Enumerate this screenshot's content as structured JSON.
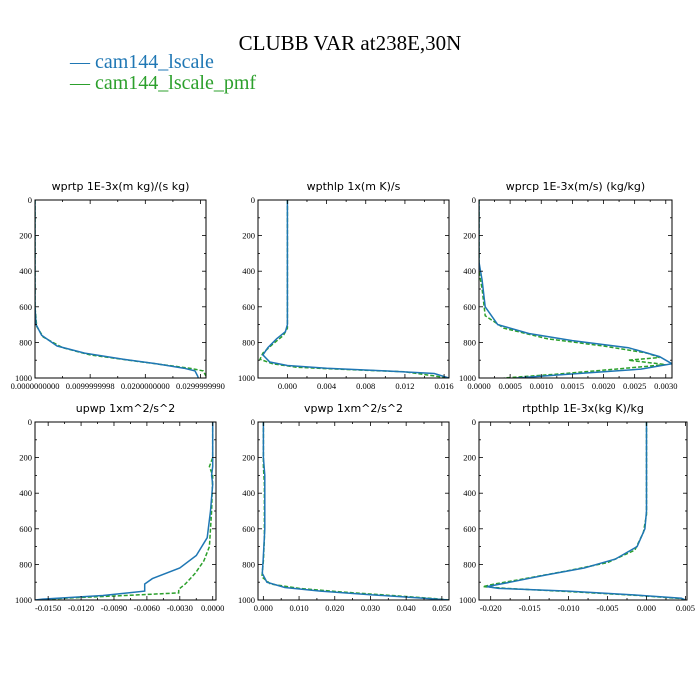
{
  "title": "CLUBB VAR at238E,30N",
  "legend": [
    {
      "label": "cam144_lscale",
      "color": "#1f77b4",
      "dash": "solid"
    },
    {
      "label": "cam144_lscale_pmf",
      "color": "#2ca02c",
      "dash": "dashed"
    }
  ],
  "chart_data": [
    {
      "type": "line",
      "title": "wprtp  1E-3x(m kg)/(s kg)",
      "ylim": [
        1000,
        0
      ],
      "yticks": [
        "0",
        "200",
        "400",
        "600",
        "800",
        "1000"
      ],
      "xlim": [
        0.0,
        0.031
      ],
      "xticks": [
        {
          "v": 0.0,
          "label": "0.0000000000"
        },
        {
          "v": 0.01,
          "label": "0.0099999998"
        },
        {
          "v": 0.02,
          "label": "0.0200000000"
        },
        {
          "v": 0.03,
          "label": "0.0299999990"
        }
      ],
      "series": [
        {
          "name": "cam144_lscale",
          "points": [
            [
              0.0,
              0
            ],
            [
              0.0,
              600
            ],
            [
              0.0002,
              700
            ],
            [
              0.0012,
              760
            ],
            [
              0.004,
              820
            ],
            [
              0.009,
              860
            ],
            [
              0.016,
              895
            ],
            [
              0.022,
              920
            ],
            [
              0.027,
              945
            ],
            [
              0.029,
              960
            ],
            [
              0.0295,
              990
            ],
            [
              0.0296,
              1000
            ]
          ]
        },
        {
          "name": "cam144_lscale_pmf",
          "points": [
            [
              0.0,
              0
            ],
            [
              0.0,
              600
            ],
            [
              0.0003,
              710
            ],
            [
              0.0015,
              770
            ],
            [
              0.005,
              830
            ],
            [
              0.01,
              870
            ],
            [
              0.017,
              900
            ],
            [
              0.023,
              925
            ],
            [
              0.028,
              945
            ],
            [
              0.0305,
              960
            ],
            [
              0.031,
              990
            ],
            [
              0.031,
              1000
            ]
          ]
        }
      ]
    },
    {
      "type": "line",
      "title": "wpthlp  1x(m K)/s",
      "ylim": [
        1000,
        0
      ],
      "yticks": [
        "0",
        "200",
        "400",
        "600",
        "800",
        "1000"
      ],
      "xlim": [
        -0.003,
        0.0165
      ],
      "xticks": [
        {
          "v": 0.0,
          "label": "0.000"
        },
        {
          "v": 0.004,
          "label": "0.004"
        },
        {
          "v": 0.008,
          "label": "0.008"
        },
        {
          "v": 0.012,
          "label": "0.012"
        },
        {
          "v": 0.016,
          "label": "0.016"
        }
      ],
      "series": [
        {
          "name": "cam144_lscale",
          "points": [
            [
              0.0,
              0
            ],
            [
              0.0,
              700
            ],
            [
              -0.0002,
              740
            ],
            [
              -0.0011,
              780
            ],
            [
              -0.002,
              830
            ],
            [
              -0.0025,
              870
            ],
            [
              -0.0018,
              910
            ],
            [
              0.0,
              930
            ],
            [
              0.004,
              945
            ],
            [
              0.01,
              960
            ],
            [
              0.015,
              975
            ],
            [
              0.0165,
              1000
            ]
          ]
        },
        {
          "name": "cam144_lscale_pmf",
          "points": [
            [
              0.0,
              0
            ],
            [
              0.0,
              720
            ],
            [
              -0.0004,
              760
            ],
            [
              -0.0015,
              810
            ],
            [
              -0.0025,
              860
            ],
            [
              -0.0028,
              895
            ],
            [
              -0.0015,
              920
            ],
            [
              0.001,
              940
            ],
            [
              0.006,
              952
            ],
            [
              0.012,
              965
            ],
            [
              0.0165,
              1000
            ]
          ]
        }
      ]
    },
    {
      "type": "line",
      "title": "wprcp  1E-3x(m/s) (kg/kg)",
      "ylim": [
        1000,
        0
      ],
      "yticks": [
        "0",
        "200",
        "400",
        "600",
        "800",
        "1000"
      ],
      "xlim": [
        0.0,
        0.0031
      ],
      "xticks": [
        {
          "v": 0.0,
          "label": "0.0000"
        },
        {
          "v": 0.0005,
          "label": "0.0005"
        },
        {
          "v": 0.001,
          "label": "0.0010"
        },
        {
          "v": 0.0015,
          "label": "0.0015"
        },
        {
          "v": 0.002,
          "label": "0.0020"
        },
        {
          "v": 0.0025,
          "label": "0.0025"
        },
        {
          "v": 0.003,
          "label": "0.0030"
        }
      ],
      "series": [
        {
          "name": "cam144_lscale",
          "points": [
            [
              0.0,
              0
            ],
            [
              0.0,
              350
            ],
            [
              5e-05,
              450
            ],
            [
              0.0001,
              600
            ],
            [
              0.0003,
              700
            ],
            [
              0.0008,
              750
            ],
            [
              0.0015,
              790
            ],
            [
              0.0024,
              830
            ],
            [
              0.0029,
              880
            ],
            [
              0.0031,
              920
            ],
            [
              0.0026,
              950
            ],
            [
              0.0014,
              980
            ],
            [
              0.0006,
              1000
            ]
          ]
        },
        {
          "name": "cam144_lscale_pmf",
          "points": [
            [
              0.0,
              0
            ],
            [
              0.0,
              400
            ],
            [
              5e-05,
              500
            ],
            [
              0.0001,
              650
            ],
            [
              0.0004,
              720
            ],
            [
              0.0011,
              780
            ],
            [
              0.002,
              820
            ],
            [
              0.0027,
              860
            ],
            [
              0.0029,
              885
            ],
            [
              0.0024,
              900
            ],
            [
              0.003,
              925
            ],
            [
              0.0022,
              950
            ],
            [
              0.0012,
              980
            ],
            [
              0.0004,
              1000
            ]
          ]
        }
      ]
    },
    {
      "type": "line",
      "title": "upwp  1xm^2/s^2",
      "ylim": [
        1000,
        0
      ],
      "yticks": [
        "0",
        "200",
        "400",
        "600",
        "800",
        "1000"
      ],
      "xlim": [
        -0.0162,
        0.0003
      ],
      "xticks": [
        {
          "v": -0.015,
          "label": "-0.0150"
        },
        {
          "v": -0.012,
          "label": "-0.0120"
        },
        {
          "v": -0.009,
          "label": "-0.0090"
        },
        {
          "v": -0.006,
          "label": "-0.0060"
        },
        {
          "v": -0.003,
          "label": "-0.0030"
        },
        {
          "v": 0.0,
          "label": "0.0000"
        }
      ],
      "series": [
        {
          "name": "cam144_lscale",
          "points": [
            [
              0.0,
              0
            ],
            [
              0.0,
              250
            ],
            [
              -0.0001,
              300
            ],
            [
              0.0,
              350
            ],
            [
              -0.0002,
              500
            ],
            [
              -0.0005,
              650
            ],
            [
              -0.0015,
              750
            ],
            [
              -0.003,
              820
            ],
            [
              -0.0055,
              880
            ],
            [
              -0.0062,
              910
            ],
            [
              -0.0062,
              950
            ],
            [
              -0.01,
              975
            ],
            [
              -0.0155,
              995
            ],
            [
              -0.0162,
              1000
            ]
          ]
        },
        {
          "name": "cam144_lscale_pmf",
          "points": [
            [
              0.0,
              0
            ],
            [
              0.0,
              200
            ],
            [
              -0.0003,
              250
            ],
            [
              0.0,
              300
            ],
            [
              -0.0001,
              500
            ],
            [
              -0.0003,
              700
            ],
            [
              -0.0008,
              780
            ],
            [
              -0.0016,
              850
            ],
            [
              -0.0025,
              910
            ],
            [
              -0.0031,
              940
            ],
            [
              -0.0031,
              960
            ],
            [
              -0.008,
              975
            ],
            [
              -0.0135,
              990
            ],
            [
              -0.016,
              1000
            ]
          ]
        }
      ]
    },
    {
      "type": "line",
      "title": "vpwp  1xm^2/s^2",
      "ylim": [
        1000,
        0
      ],
      "yticks": [
        "0",
        "200",
        "400",
        "600",
        "800",
        "1000"
      ],
      "xlim": [
        -0.0015,
        0.052
      ],
      "xticks": [
        {
          "v": 0.0,
          "label": "0.000"
        },
        {
          "v": 0.01,
          "label": "0.010"
        },
        {
          "v": 0.02,
          "label": "0.020"
        },
        {
          "v": 0.03,
          "label": "0.030"
        },
        {
          "v": 0.04,
          "label": "0.040"
        },
        {
          "v": 0.05,
          "label": "0.050"
        }
      ],
      "series": [
        {
          "name": "cam144_lscale",
          "points": [
            [
              0.0,
              0
            ],
            [
              0.0,
              200
            ],
            [
              0.0004,
              300
            ],
            [
              0.0004,
              600
            ],
            [
              0.0,
              750
            ],
            [
              -0.0003,
              850
            ],
            [
              0.001,
              900
            ],
            [
              0.006,
              930
            ],
            [
              0.016,
              950
            ],
            [
              0.03,
              970
            ],
            [
              0.045,
              990
            ],
            [
              0.052,
              1000
            ]
          ]
        },
        {
          "name": "cam144_lscale_pmf",
          "points": [
            [
              0.0,
              0
            ],
            [
              0.0,
              250
            ],
            [
              0.0003,
              350
            ],
            [
              0.0003,
              650
            ],
            [
              0.0,
              780
            ],
            [
              -0.0004,
              870
            ],
            [
              0.002,
              910
            ],
            [
              0.01,
              935
            ],
            [
              0.022,
              955
            ],
            [
              0.036,
              975
            ],
            [
              0.048,
              992
            ],
            [
              0.052,
              1000
            ]
          ]
        }
      ]
    },
    {
      "type": "line",
      "title": "rtpthlp  1E-3x(kg K)/kg",
      "ylim": [
        1000,
        0
      ],
      "yticks": [
        "0",
        "200",
        "400",
        "600",
        "800",
        "1000"
      ],
      "xlim": [
        -0.0215,
        0.0052
      ],
      "xticks": [
        {
          "v": -0.02,
          "label": "-0.020"
        },
        {
          "v": -0.015,
          "label": "-0.015"
        },
        {
          "v": -0.01,
          "label": "-0.010"
        },
        {
          "v": -0.005,
          "label": "-0.005"
        },
        {
          "v": 0.0,
          "label": "0.000"
        },
        {
          "v": 0.005,
          "label": "0.005"
        }
      ],
      "series": [
        {
          "name": "cam144_lscale",
          "points": [
            [
              0.0,
              0
            ],
            [
              0.0,
              500
            ],
            [
              -0.0002,
              600
            ],
            [
              -0.0012,
              700
            ],
            [
              -0.004,
              770
            ],
            [
              -0.008,
              820
            ],
            [
              -0.013,
              860
            ],
            [
              -0.0175,
              900
            ],
            [
              -0.0205,
              925
            ],
            [
              -0.019,
              935
            ],
            [
              -0.01,
              950
            ],
            [
              -0.002,
              970
            ],
            [
              0.0045,
              990
            ],
            [
              0.005,
              1000
            ]
          ]
        },
        {
          "name": "cam144_lscale_pmf",
          "points": [
            [
              0.0,
              0
            ],
            [
              0.0,
              520
            ],
            [
              -0.0004,
              620
            ],
            [
              -0.0015,
              720
            ],
            [
              -0.005,
              790
            ],
            [
              -0.01,
              835
            ],
            [
              -0.015,
              875
            ],
            [
              -0.0195,
              910
            ],
            [
              -0.021,
              925
            ],
            [
              -0.018,
              935
            ],
            [
              -0.009,
              955
            ],
            [
              -0.001,
              975
            ],
            [
              0.0045,
              992
            ],
            [
              0.005,
              1000
            ]
          ]
        }
      ]
    }
  ]
}
